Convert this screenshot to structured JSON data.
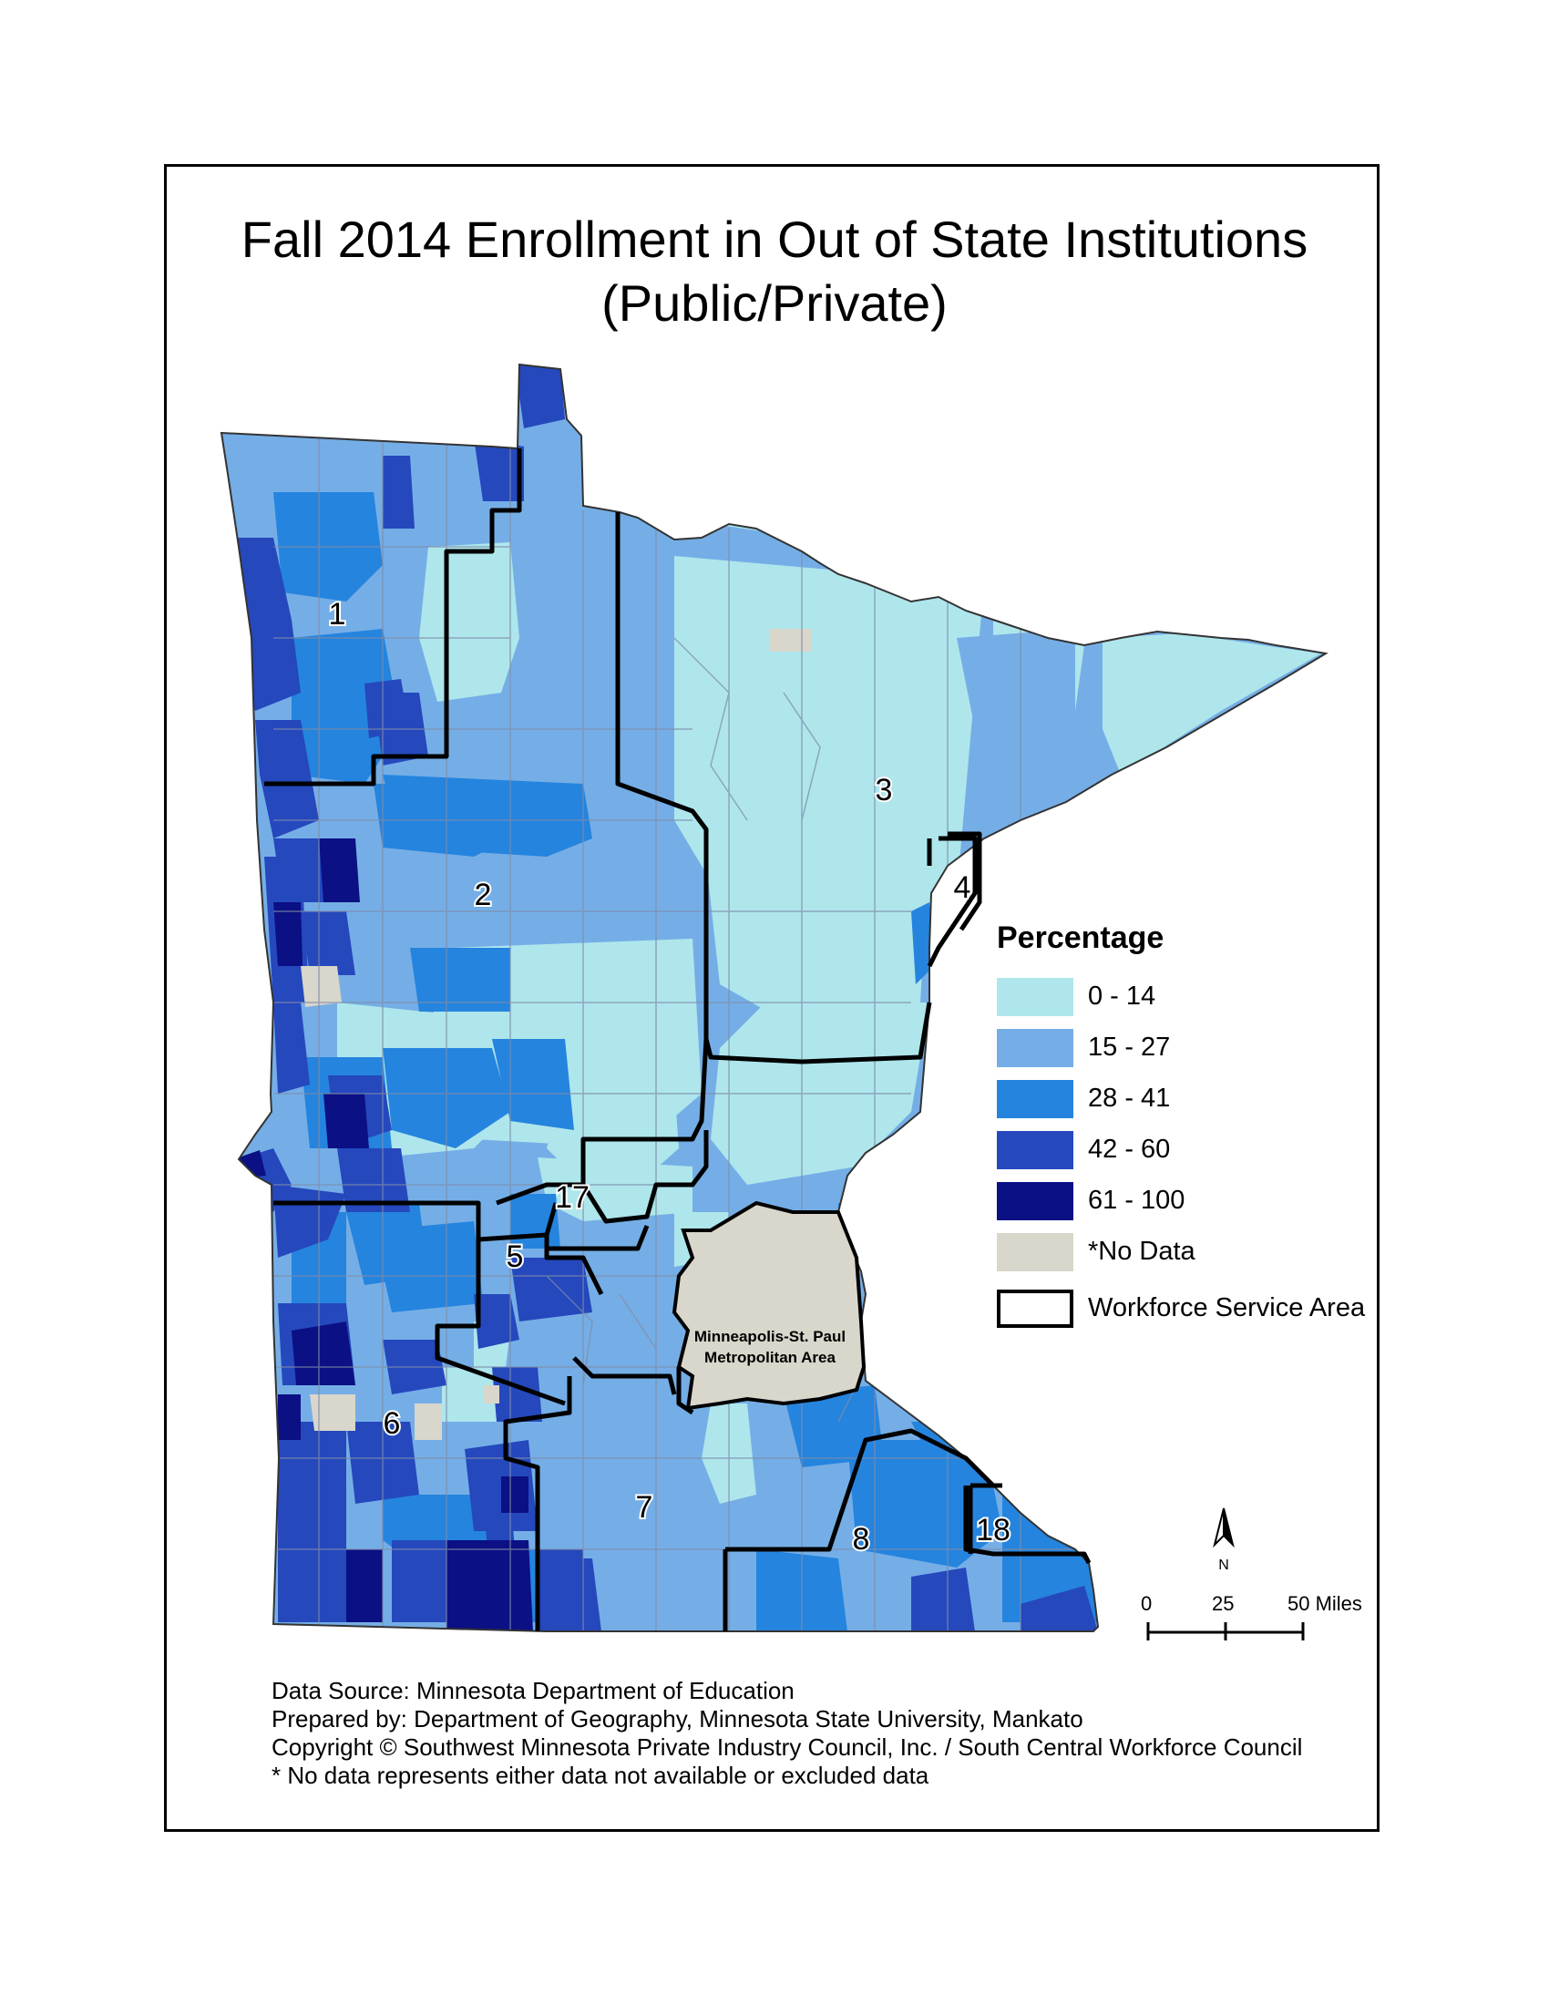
{
  "title": {
    "line1": "Fall 2014 Enrollment in Out of State Institutions",
    "line2": "(Public/Private)"
  },
  "legend": {
    "title": "Percentage",
    "classes": [
      {
        "label": "0 - 14",
        "color": "#aee6ec"
      },
      {
        "label": "15 - 27",
        "color": "#75aee6"
      },
      {
        "label": "28 - 41",
        "color": "#2584de"
      },
      {
        "label": "42 - 60",
        "color": "#2548bd"
      },
      {
        "label": "61 - 100",
        "color": "#0b1084"
      },
      {
        "label": "*No Data",
        "color": "#d9d6cb"
      }
    ],
    "boundary_label": "Workforce Service Area"
  },
  "regions": [
    {
      "label": "1"
    },
    {
      "label": "2"
    },
    {
      "label": "3"
    },
    {
      "label": "4"
    },
    {
      "label": "5"
    },
    {
      "label": "6"
    },
    {
      "label": "7"
    },
    {
      "label": "8"
    },
    {
      "label": "17"
    },
    {
      "label": "18"
    }
  ],
  "metro_label": {
    "line1": "Minneapolis-St. Paul",
    "line2": "Metropolitan Area"
  },
  "north_arrow": {
    "label": "N"
  },
  "scale_bar": {
    "ticks": [
      "0",
      "25",
      "50 Miles"
    ]
  },
  "footer": [
    "Data Source: Minnesota Department of Education",
    "Prepared by: Department of Geography, Minnesota State University, Mankato",
    "Copyright © Southwest Minnesota Private Industry Council, Inc.  / South Central Workforce Council",
    "* No data represents either data not available or excluded data"
  ]
}
